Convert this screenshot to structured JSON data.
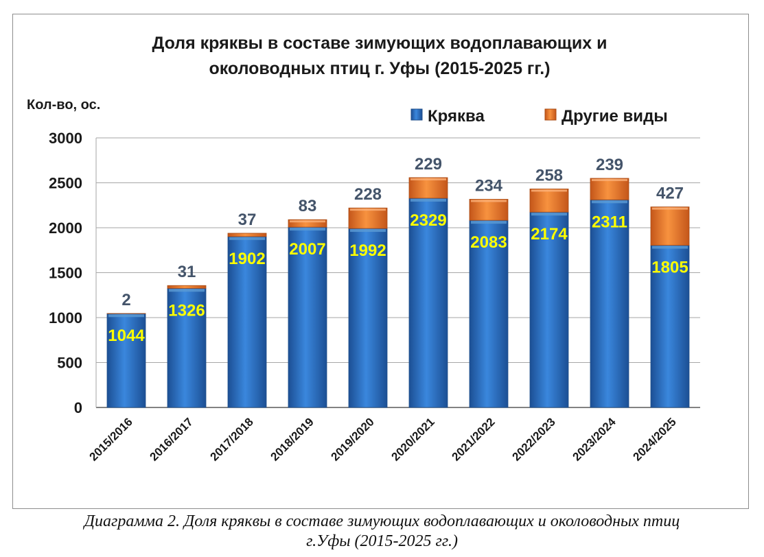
{
  "chart_data": {
    "type": "bar",
    "stacked": true,
    "title_lines": [
      "Доля кряквы в составе зимующих водоплавающих и",
      "околоводных птиц г. Уфы (2015-2025 гг.)"
    ],
    "ylabel": "Кол-во, ос.",
    "xlabel": "",
    "ylim": [
      0,
      3000
    ],
    "yticks": [
      0,
      500,
      1000,
      1500,
      2000,
      2500,
      3000
    ],
    "grid": true,
    "legend_position": "top-right",
    "categories": [
      "2015/2016",
      "2016/2017",
      "2017/2018",
      "2018/2019",
      "2019/2020",
      "2020/2021",
      "2021/2022",
      "2022/2023",
      "2023/2024",
      "2024/2025"
    ],
    "series": [
      {
        "name": "Кряква",
        "color": "#2e75c9",
        "values": [
          1044,
          1326,
          1902,
          2007,
          1992,
          2329,
          2083,
          2174,
          2311,
          1805
        ]
      },
      {
        "name": "Другие виды",
        "color": "#ed7d31",
        "values": [
          2,
          31,
          37,
          83,
          228,
          229,
          234,
          258,
          239,
          427
        ]
      }
    ]
  },
  "caption": {
    "line1": "Диаграмма 2. Доля кряквы в составе зимующих водоплавающих и околоводных птиц",
    "line2": "г.Уфы (2015-2025 гг.)"
  }
}
